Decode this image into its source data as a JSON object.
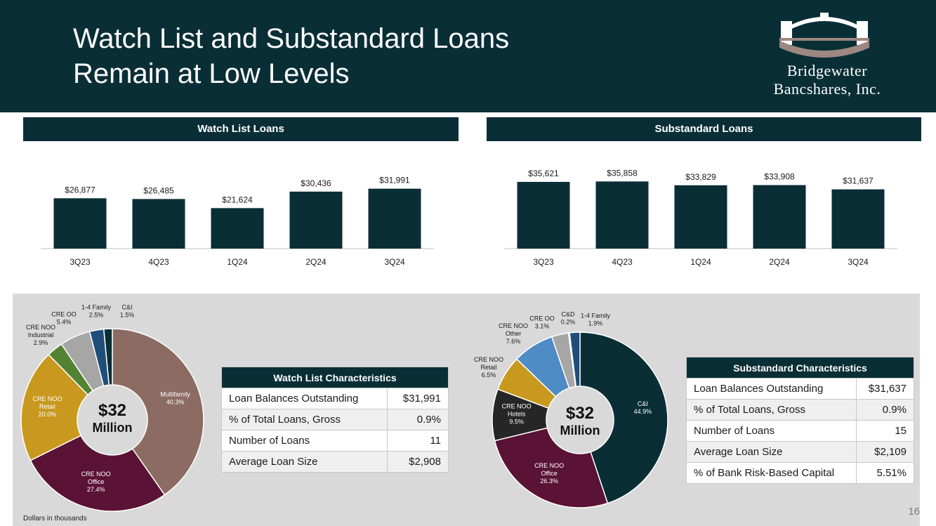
{
  "header": {
    "title_line1": "Watch List and Substandard Loans",
    "title_line2": "Remain at Low Levels",
    "logo_line1": "Bridgewater",
    "logo_line2": "Bancshares, Inc."
  },
  "colors": {
    "navy": "#0a2e36",
    "multifamily": "#8c6b63",
    "office": "#5a1235",
    "retail": "#c8991e",
    "industrial": "#548235",
    "cre_oo": "#a6a6a6",
    "one_four_family": "#1f4e79",
    "ci_watch": "#0a2e36",
    "hotels": "#262626",
    "other": "#4f8bc4"
  },
  "footnote": "Dollars in thousands",
  "page_number": "16",
  "chart_data": [
    {
      "type": "bar",
      "title": "Watch List Loans",
      "categories": [
        "3Q23",
        "4Q23",
        "1Q24",
        "2Q24",
        "3Q24"
      ],
      "values": [
        26877,
        26485,
        21624,
        30436,
        31991
      ],
      "value_labels": [
        "$26,877",
        "$26,485",
        "$21,624",
        "$30,436",
        "$31,991"
      ],
      "ylim": [
        0,
        36000
      ]
    },
    {
      "type": "bar",
      "title": "Substandard Loans",
      "categories": [
        "3Q23",
        "4Q23",
        "1Q24",
        "2Q24",
        "3Q24"
      ],
      "values": [
        35621,
        35858,
        33829,
        33908,
        31637
      ],
      "value_labels": [
        "$35,621",
        "$35,858",
        "$33,829",
        "$33,908",
        "$31,637"
      ],
      "ylim": [
        0,
        36000
      ]
    },
    {
      "type": "pie",
      "title": "Watch List Composition",
      "center_big": "$32",
      "center_small": "Million",
      "slices": [
        {
          "label": "Multifamily",
          "pct": "40.3%",
          "value": 40.3,
          "color": "#8c6b63",
          "inside": true,
          "text_color": "#ffffff"
        },
        {
          "label": "CRE NOO Office",
          "pct": "27.4%",
          "value": 27.4,
          "color": "#5a1235",
          "inside": true,
          "text_color": "#ffffff"
        },
        {
          "label": "CRE NOO Retail",
          "pct": "20.0%",
          "value": 20.0,
          "color": "#c8991e",
          "inside": true,
          "text_color": "#ffffff"
        },
        {
          "label": "CRE NOO Industrial",
          "pct": "2.9%",
          "value": 2.9,
          "color": "#548235",
          "inside": false,
          "text_color": "#1a1a1a"
        },
        {
          "label": "CRE OO",
          "pct": "5.4%",
          "value": 5.4,
          "color": "#a6a6a6",
          "inside": false,
          "text_color": "#1a1a1a"
        },
        {
          "label": "1-4 Family",
          "pct": "2.5%",
          "value": 2.5,
          "color": "#1f4e79",
          "inside": false,
          "text_color": "#1a1a1a"
        },
        {
          "label": "C&I",
          "pct": "1.5%",
          "value": 1.5,
          "color": "#0a2e36",
          "inside": false,
          "text_color": "#1a1a1a"
        }
      ]
    },
    {
      "type": "pie",
      "title": "Substandard Composition",
      "center_big": "$32",
      "center_small": "Million",
      "slices": [
        {
          "label": "C&I",
          "pct": "44.9%",
          "value": 44.9,
          "color": "#0a2e36",
          "inside": true,
          "text_color": "#ffffff"
        },
        {
          "label": "CRE NOO Office",
          "pct": "26.3%",
          "value": 26.3,
          "color": "#5a1235",
          "inside": true,
          "text_color": "#ffffff"
        },
        {
          "label": "CRE NOO Hotels",
          "pct": "9.5%",
          "value": 9.5,
          "color": "#262626",
          "inside": true,
          "text_color": "#ffffff"
        },
        {
          "label": "CRE NOO Retail",
          "pct": "6.5%",
          "value": 6.5,
          "color": "#c8991e",
          "inside": false,
          "text_color": "#1a1a1a"
        },
        {
          "label": "CRE NOO Other",
          "pct": "7.6%",
          "value": 7.6,
          "color": "#4f8bc4",
          "inside": false,
          "text_color": "#1a1a1a"
        },
        {
          "label": "CRE OO",
          "pct": "3.1%",
          "value": 3.1,
          "color": "#a6a6a6",
          "inside": false,
          "text_color": "#1a1a1a"
        },
        {
          "label": "C&D",
          "pct": "0.2%",
          "value": 0.2,
          "color": "#8c6b63",
          "inside": false,
          "text_color": "#1a1a1a"
        },
        {
          "label": "1-4 Family",
          "pct": "1.9%",
          "value": 1.9,
          "color": "#1f4e79",
          "inside": false,
          "text_color": "#1a1a1a"
        }
      ]
    }
  ],
  "watch_table": {
    "title": "Watch List Characteristics",
    "rows": [
      {
        "label": "Loan Balances Outstanding",
        "value": "$31,991"
      },
      {
        "label": "% of Total Loans, Gross",
        "value": "0.9%"
      },
      {
        "label": "Number of Loans",
        "value": "11"
      },
      {
        "label": "Average Loan Size",
        "value": "$2,908"
      }
    ]
  },
  "substandard_table": {
    "title": "Substandard Characteristics",
    "rows": [
      {
        "label": "Loan Balances Outstanding",
        "value": "$31,637"
      },
      {
        "label": "% of Total Loans, Gross",
        "value": "0.9%"
      },
      {
        "label": "Number of Loans",
        "value": "15"
      },
      {
        "label": "Average Loan Size",
        "value": "$2,109"
      },
      {
        "label": "% of Bank Risk-Based Capital",
        "value": "5.51%"
      }
    ]
  }
}
